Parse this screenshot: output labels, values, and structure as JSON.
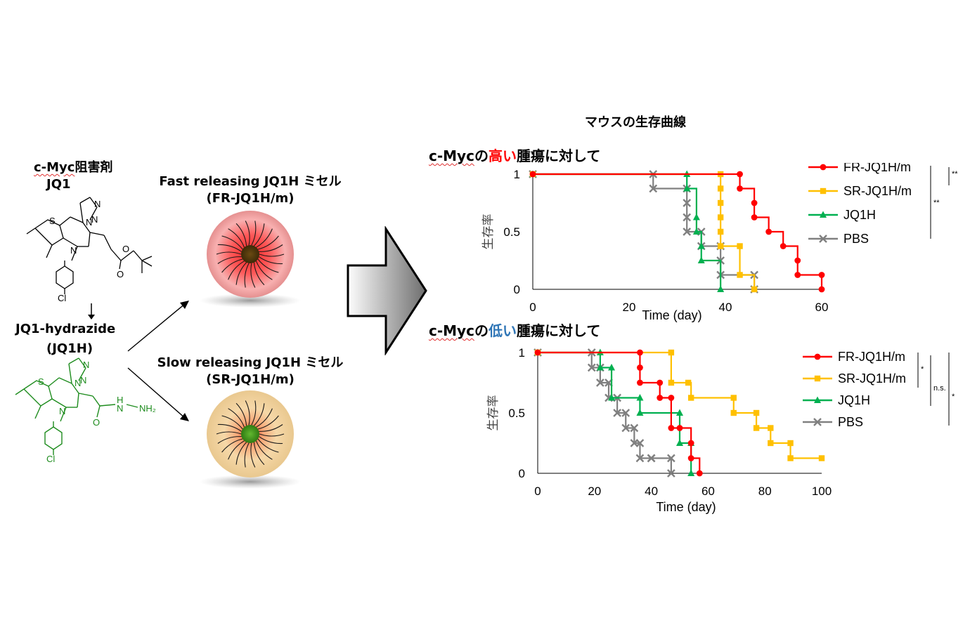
{
  "left": {
    "inhibitor_label_prefix": "c-Myc",
    "inhibitor_label_suffix": "阻害剤",
    "inhibitor_name": "JQ1",
    "jq1_atoms": {
      "S": "S",
      "N1": "N",
      "N2": "N",
      "N3": "N",
      "N4": "N",
      "O1": "O",
      "O2": "O",
      "Cl": "Cl"
    },
    "hydrazide_title": "JQ1-hydrazide",
    "hydrazide_abbr": "(JQ1H)",
    "hydrazide_atoms": {
      "S": "S",
      "N1": "N",
      "N2": "N",
      "N3": "N",
      "N4": "N",
      "O": "O",
      "NH": "N",
      "H": "H",
      "NH2": "NH₂",
      "Cl": "Cl"
    }
  },
  "micelles": {
    "fast_title": "Fast releasing JQ1H ミセル",
    "fast_abbr": "(FR-JQ1H/m)",
    "slow_title": "Slow releasing JQ1H ミセル",
    "slow_abbr": "(SR-JQ1H/m)"
  },
  "right": {
    "main_title": "マウスの生存曲線"
  },
  "chart_data": [
    {
      "type": "line",
      "subtitle_prefix": "c-Myc",
      "subtitle_emph": "高い",
      "subtitle_suffix": "腫瘍に対して",
      "xlabel": "Time (day)",
      "ylabel": "生存率",
      "xlim": [
        0,
        60
      ],
      "ylim": [
        0,
        1
      ],
      "xticks": [
        "0",
        "20",
        "40",
        "60"
      ],
      "yticks": [
        "0",
        "0.5",
        "1"
      ],
      "series": [
        {
          "name": "FR-JQ1H/m",
          "color": "#ff0000",
          "marker": "circle",
          "x": [
            0,
            43,
            43,
            46,
            46,
            49,
            52,
            55,
            55,
            60,
            60
          ],
          "y": [
            1,
            1,
            0.875,
            0.75,
            0.625,
            0.5,
            0.375,
            0.25,
            0.125,
            0.125,
            0
          ]
        },
        {
          "name": "SR-JQ1H/m",
          "color": "#ffc000",
          "marker": "square",
          "x": [
            0,
            39,
            39,
            39,
            39,
            39,
            39,
            43,
            43,
            46
          ],
          "y": [
            1,
            1,
            0.875,
            0.75,
            0.625,
            0.5,
            0.375,
            0.375,
            0.125,
            0
          ]
        },
        {
          "name": "JQ1H",
          "color": "#00b050",
          "marker": "triangle",
          "x": [
            0,
            32,
            32,
            34,
            34,
            35,
            35,
            39
          ],
          "y": [
            1,
            1,
            0.875,
            0.625,
            0.5,
            0.375,
            0.25,
            0
          ]
        },
        {
          "name": "PBS",
          "color": "#808080",
          "marker": "x",
          "x": [
            0,
            25,
            25,
            32,
            32,
            32,
            32,
            35,
            35,
            39,
            39,
            39,
            46,
            46
          ],
          "y": [
            1,
            1,
            0.875,
            0.875,
            0.75,
            0.625,
            0.5,
            0.5,
            0.375,
            0.375,
            0.25,
            0.125,
            0.125,
            0
          ]
        }
      ],
      "significance": [
        "**",
        "**"
      ],
      "legend_position": "right"
    },
    {
      "type": "line",
      "subtitle_prefix": "c-Myc",
      "subtitle_emph": "低い",
      "subtitle_suffix": "腫瘍に対して",
      "xlabel": "Time (day)",
      "ylabel": "生存率",
      "xlim": [
        0,
        100
      ],
      "ylim": [
        0,
        1
      ],
      "xticks": [
        "0",
        "20",
        "40",
        "60",
        "80",
        "100"
      ],
      "yticks": [
        "0",
        "0.5",
        "1"
      ],
      "series": [
        {
          "name": "FR-JQ1H/m",
          "color": "#ff0000",
          "marker": "circle",
          "x": [
            0,
            36,
            36,
            36,
            43,
            43,
            47,
            47,
            50,
            54,
            54,
            57
          ],
          "y": [
            1,
            1,
            0.875,
            0.75,
            0.75,
            0.625,
            0.625,
            0.375,
            0.375,
            0.25,
            0.125,
            0
          ]
        },
        {
          "name": "SR-JQ1H/m",
          "color": "#ffc000",
          "marker": "square",
          "x": [
            0,
            47,
            47,
            53,
            54,
            69,
            69,
            77,
            77,
            82,
            82,
            89,
            89,
            100
          ],
          "y": [
            1,
            1,
            0.75,
            0.75,
            0.625,
            0.625,
            0.5,
            0.5,
            0.375,
            0.375,
            0.25,
            0.25,
            0.125,
            0.125
          ]
        },
        {
          "name": "JQ1H",
          "color": "#00b050",
          "marker": "triangle",
          "x": [
            0,
            22,
            22,
            26,
            26,
            36,
            36,
            50,
            50,
            54,
            54
          ],
          "y": [
            1,
            1,
            0.875,
            0.875,
            0.625,
            0.625,
            0.5,
            0.5,
            0.25,
            0.25,
            0
          ]
        },
        {
          "name": "PBS",
          "color": "#808080",
          "marker": "x",
          "x": [
            0,
            19,
            19,
            22,
            22,
            25,
            25,
            28,
            28,
            31,
            31,
            34,
            34,
            36,
            36,
            40,
            40,
            47,
            47
          ],
          "y": [
            1,
            1,
            0.875,
            0.875,
            0.75,
            0.75,
            0.625,
            0.625,
            0.5,
            0.5,
            0.375,
            0.375,
            0.25,
            0.25,
            0.125,
            0.125,
            0.125,
            0.125,
            0
          ]
        }
      ],
      "significance": [
        "*",
        "n.s.",
        "*"
      ],
      "legend_position": "right"
    }
  ]
}
